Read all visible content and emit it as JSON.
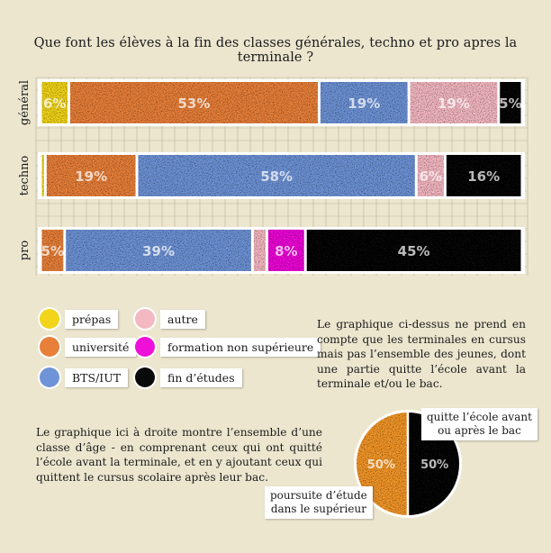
{
  "title": "Que font les élèves à la fin des classes générales, techno et pro apres la terminale ?",
  "chart_data": [
    {
      "type": "bar",
      "orientation": "horizontal",
      "stacked": true,
      "normalized": true,
      "categories": [
        "général",
        "techno",
        "pro"
      ],
      "series": [
        {
          "name": "prépas",
          "color": "#f2d41a",
          "values": [
            6,
            1,
            0
          ],
          "labels": [
            "6%",
            "",
            ""
          ]
        },
        {
          "name": "université",
          "color": "#e8803a",
          "values": [
            53,
            19,
            5
          ],
          "labels": [
            "53%",
            "19%",
            "5%"
          ]
        },
        {
          "name": "BTS/IUT",
          "color": "#6e93d6",
          "values": [
            19,
            58,
            39
          ],
          "labels": [
            "19%",
            "58%",
            "39%"
          ]
        },
        {
          "name": "autre",
          "color": "#f4b8c2",
          "values": [
            19,
            6,
            3
          ],
          "labels": [
            "19%",
            "6%",
            ""
          ]
        },
        {
          "name": "formation non supérieure",
          "color": "#ee10d8",
          "values": [
            0,
            0,
            8
          ],
          "labels": [
            "",
            "",
            "8%"
          ]
        },
        {
          "name": "fin d’études",
          "color": "#0a0a0a",
          "values": [
            5,
            16,
            45
          ],
          "labels": [
            "5%",
            "16%",
            "45%"
          ]
        }
      ],
      "grid": true,
      "legend_position": "bottom-left"
    },
    {
      "type": "pie",
      "slices": [
        {
          "label": "poursuite d’étude\ndans le supérieur",
          "value": 50,
          "value_label": "50%",
          "color": "#f2962a"
        },
        {
          "label": "quitte l’école avant\nou après le bac",
          "value": 50,
          "value_label": "50%",
          "color": "#0a0a0a"
        }
      ]
    }
  ],
  "legend": [
    {
      "label": "prépas",
      "color": "#f2d41a"
    },
    {
      "label": "autre",
      "color": "#f4b8c2"
    },
    {
      "label": "université",
      "color": "#e8803a"
    },
    {
      "label": "formation non supérieure",
      "color": "#ee10d8"
    },
    {
      "label": "BTS/IUT",
      "color": "#6e93d6"
    },
    {
      "label": "fin d’études",
      "color": "#0a0a0a"
    }
  ],
  "notes": {
    "right": "Le graphique ci-dessus ne prend en compte que les terminales en cursus mais pas l’ensemble des jeunes, dont une partie quitte l’école avant la terminale et/ou le bac.",
    "left": "Le graphique ici à droite montre l’ensemble d’une classe d’âge - en comprenant ceux qui ont quitté l’école avant la terminale, et en y ajoutant ceux qui quittent le cursus scolaire après leur bac."
  },
  "pie_labels": {
    "left_line1": "poursuite d’étude",
    "left_line2": "dans le supérieur",
    "right_line1": "quitte l’école avant",
    "right_line2": "ou après le bac"
  }
}
